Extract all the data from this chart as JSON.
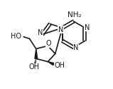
{
  "bg_color": "#ffffff",
  "line_color": "#1a1a1a",
  "line_width": 1.2,
  "font_size": 7.0,
  "figsize": [
    1.59,
    1.25
  ],
  "dpi": 100,
  "xlim": [
    0.0,
    1.0
  ],
  "ylim": [
    0.0,
    1.0
  ]
}
